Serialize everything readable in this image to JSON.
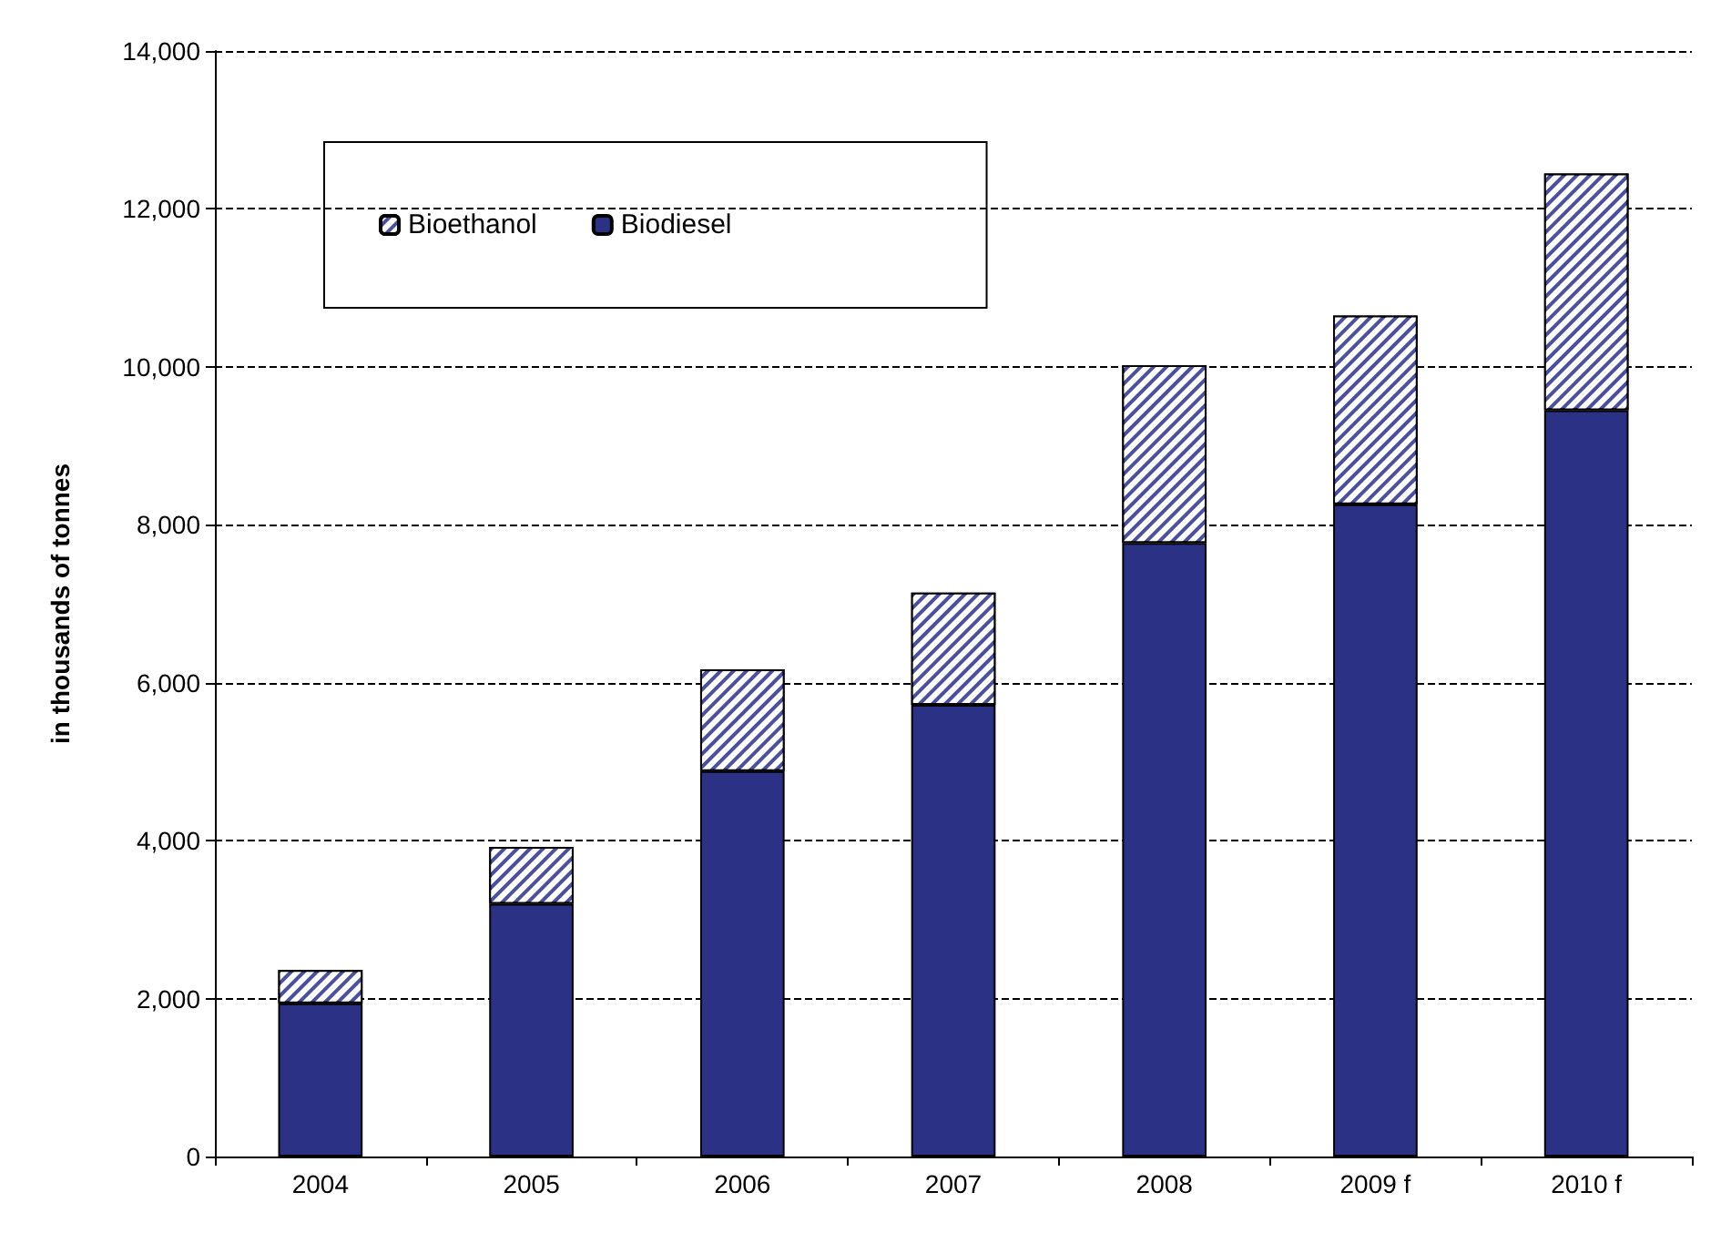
{
  "chart_data": {
    "type": "bar",
    "ylabel": "in thousands of tonnes",
    "categories": [
      "2004",
      "2005",
      "2006",
      "2007",
      "2008",
      "2009 f",
      "2010 f"
    ],
    "stacked": true,
    "series": [
      {
        "name": "Biodiesel",
        "color": "#2b3285",
        "values": [
          1940,
          3200,
          4880,
          5720,
          7770,
          8260,
          9450
        ]
      },
      {
        "name": "Bioethanol",
        "color": "#4a50a0",
        "values": [
          420,
          720,
          1290,
          1420,
          2250,
          2390,
          3000
        ]
      }
    ],
    "ylim": [
      0,
      14000
    ],
    "yticks": [
      0,
      {
        "value": 2000,
        "label": "2,000"
      },
      {
        "value": 4000,
        "label": "4,000"
      },
      {
        "value": 6000,
        "label": "6,000"
      },
      {
        "value": 8000,
        "label": "8,000"
      },
      {
        "value": 10000,
        "label": "10,000"
      },
      {
        "value": 12000,
        "label": "12,000"
      },
      {
        "value": 14000,
        "label": "14,000"
      }
    ],
    "grid": "y",
    "legend": "top left"
  }
}
